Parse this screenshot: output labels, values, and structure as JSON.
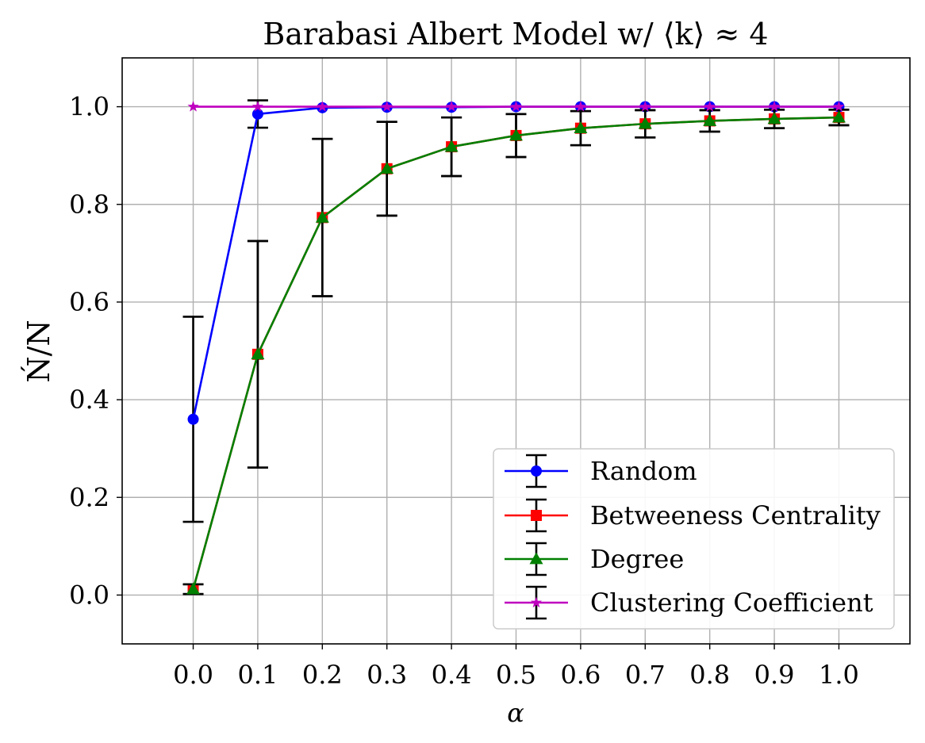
{
  "chart_data": {
    "type": "line",
    "title": "Barabasi Albert Model w/ ⟨k⟩ ≈ 4",
    "xlabel": "α",
    "ylabel": "Ń/N",
    "x": [
      0.0,
      0.1,
      0.2,
      0.3,
      0.4,
      0.5,
      0.6,
      0.7,
      0.8,
      0.9,
      1.0
    ],
    "xtick_labels": [
      "0.0",
      "0.1",
      "0.2",
      "0.3",
      "0.4",
      "0.5",
      "0.6",
      "0.7",
      "0.8",
      "0.9",
      "1.0"
    ],
    "ytick_values": [
      0.0,
      0.2,
      0.4,
      0.6,
      0.8,
      1.0
    ],
    "ytick_labels": [
      "0.0",
      "0.2",
      "0.4",
      "0.6",
      "0.8",
      "1.0"
    ],
    "xlim": [
      -0.11,
      1.11
    ],
    "ylim": [
      -0.1,
      1.1
    ],
    "grid": true,
    "legend_position": "lower-right",
    "series": [
      {
        "name": "Random",
        "color": "#0000ff",
        "marker": "circle",
        "values": [
          0.36,
          0.985,
          0.998,
          0.999,
          0.999,
          1.0,
          1.0,
          1.0,
          1.0,
          1.0,
          1.0
        ],
        "errors": [
          0.21,
          0.028,
          0.0,
          0.0,
          0.0,
          0.0,
          0.0,
          0.0,
          0.0,
          0.0,
          0.0
        ]
      },
      {
        "name": "Betweeness Centrality",
        "color": "#ff0000",
        "marker": "square",
        "values": [
          0.012,
          0.493,
          0.773,
          0.873,
          0.918,
          0.941,
          0.956,
          0.965,
          0.971,
          0.975,
          0.978
        ],
        "errors": [
          0.01,
          0.232,
          0.161,
          0.096,
          0.06,
          0.044,
          0.035,
          0.028,
          0.022,
          0.019,
          0.016
        ]
      },
      {
        "name": "Degree",
        "color": "#008000",
        "marker": "triangle",
        "values": [
          0.012,
          0.493,
          0.773,
          0.873,
          0.918,
          0.941,
          0.956,
          0.965,
          0.971,
          0.975,
          0.978
        ],
        "errors": [
          0.01,
          0.232,
          0.161,
          0.096,
          0.06,
          0.044,
          0.035,
          0.028,
          0.022,
          0.019,
          0.016
        ]
      },
      {
        "name": "Clustering Coefficient",
        "color": "#bf00bf",
        "marker": "star",
        "values": [
          1.0,
          1.0,
          1.0,
          1.0,
          1.0,
          1.0,
          1.0,
          1.0,
          1.0,
          1.0,
          1.0
        ],
        "errors": [
          0,
          0,
          0,
          0,
          0,
          0,
          0,
          0,
          0,
          0,
          0
        ]
      }
    ]
  }
}
